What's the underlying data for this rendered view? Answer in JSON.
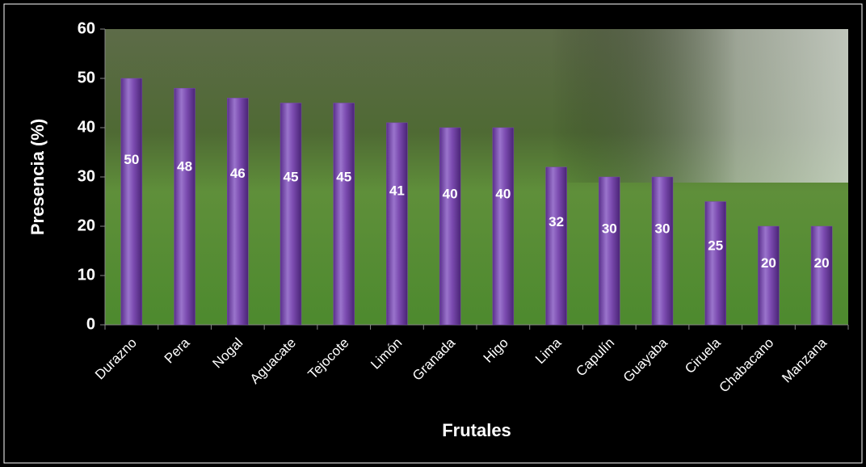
{
  "chart_data": {
    "type": "bar",
    "categories": [
      "Durazno",
      "Pera",
      "Nogal",
      "Aguacate",
      "Tejocote",
      "Limón",
      "Granada",
      "Higo",
      "Lima",
      "Capulín",
      "Guayaba",
      "Ciruela",
      "Chabacano",
      "Manzana"
    ],
    "values": [
      50,
      48,
      46,
      45,
      45,
      41,
      40,
      40,
      32,
      30,
      30,
      25,
      20,
      20
    ],
    "color": "#7b4bb0",
    "ylim": [
      0,
      60
    ],
    "yticks": [
      0,
      10,
      20,
      30,
      40,
      50,
      60
    ],
    "y_label": "Presencia (%)",
    "x_label": "Frutales"
  }
}
